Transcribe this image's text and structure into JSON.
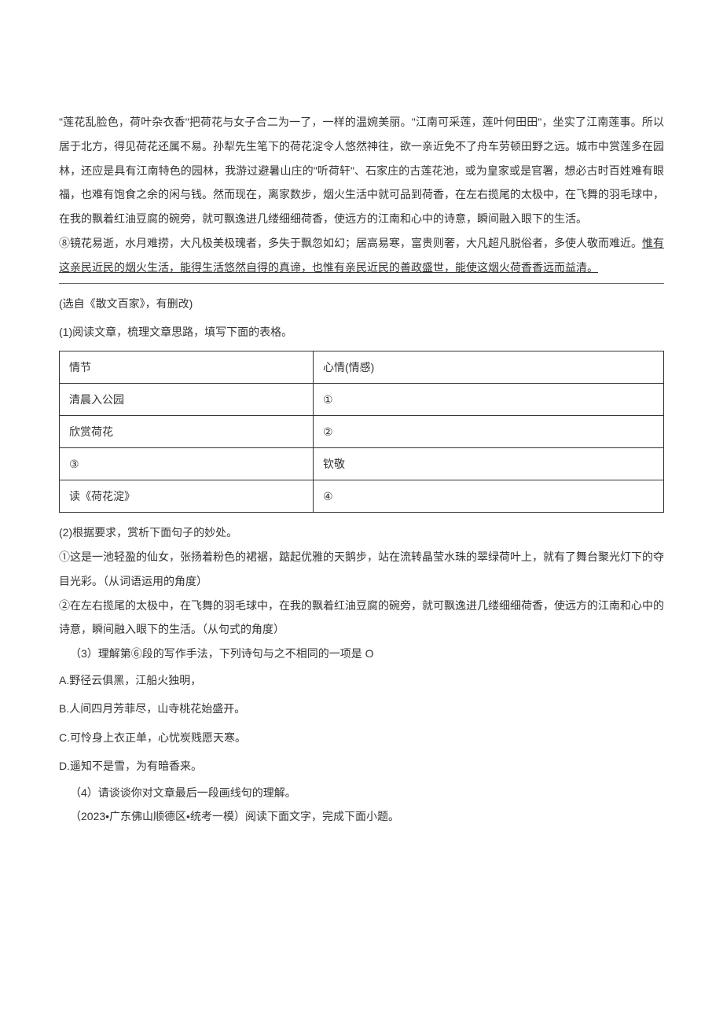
{
  "body": {
    "para_poem": "\"莲花乱脸色，荷叶杂衣香\"把荷花与女子合二为一了，一样的温婉美丽。\"江南可采莲，莲叶何田田\"，坐实了江南莲事。所以居于北方，得见荷花还属不易。孙犁先生笔下的荷花淀令人悠然神往，欲一亲近免不了舟车劳顿田野之远。城市中赏莲多在园林，还应是具有江南特色的园林，我游过避暑山庄的\"听荷轩\"、石家庄的古莲花池，或为皇家或是官署，想必古时百姓难有眼福，也难有饱食之余的闲与钱。然而现在，离家数步，烟火生活中就可品到荷香，在左右揽尾的太极中，在飞舞的羽毛球中，在我的飘着红油豆腐的碗旁，就可飘逸进几缕细细荷香，使远方的江南和心中的诗意，瞬间融入眼下的生活。",
    "para_8_pre": "⑧镜花易逝，水月难捞，大凡极美极瑰者，多失于飘忽如幻；居高易寒，富贵则奢，大凡超凡脱俗者，多使人敬而难近。",
    "para_8_underline": "惟有这亲民近民的烟火生活，能得生活悠然自得的真谛，也惟有亲民近民的善政盛世，能使这烟火荷香香远而益清。",
    "source": "(选自《散文百家》，有删改)",
    "q1_intro": "(1)阅读文章，梳理文章思路，填写下面的表格。",
    "table": {
      "header": {
        "c1": "情节",
        "c2": "心情(情感)"
      },
      "rows": [
        {
          "c1": "清晨入公园",
          "c2": "①"
        },
        {
          "c1": "欣赏荷花",
          "c2": "②"
        },
        {
          "c1": "③",
          "c2": "钦敬"
        },
        {
          "c1": "读《荷花淀》",
          "c2": "④"
        }
      ]
    },
    "q2_intro": "(2)根据要求，赏析下面句子的妙处。",
    "q2_a": "①这是一池轻盈的仙女，张扬着粉色的裙裾，踮起优雅的天鹅步，站在流转晶莹水珠的翠绿荷叶上，就有了舞台聚光灯下的夺目光彩。（从词语运用的角度）",
    "q2_b": "②在左右揽尾的太极中，在飞舞的羽毛球中，在我的飘着红油豆腐的碗旁，就可飘逸进几缕细细荷香，使远方的江南和心中的诗意，瞬间融入眼下的生活。（从句式的角度）",
    "q3": "（3）理解第⑥段的写作手法，下列诗句与之不相同的一项是 O",
    "q3_options": {
      "a": "A.野径云俱黑，江船火独明，",
      "b": "B.人间四月芳菲尽，山寺桃花始盛开。",
      "c": "C.可怜身上衣正单，心忧炭贱愿天寒。",
      "d": "D.遥知不是雪，为有暗香来。"
    },
    "q4": "（4）请谈谈你对文章最后一段画线句的理解。",
    "next": "（2023•广东佛山顺德区•统考一模）阅读下面文字，完成下面小题。"
  },
  "colors": {
    "text": "#333333",
    "background": "#ffffff",
    "border": "#333333",
    "hr": "#666666"
  }
}
